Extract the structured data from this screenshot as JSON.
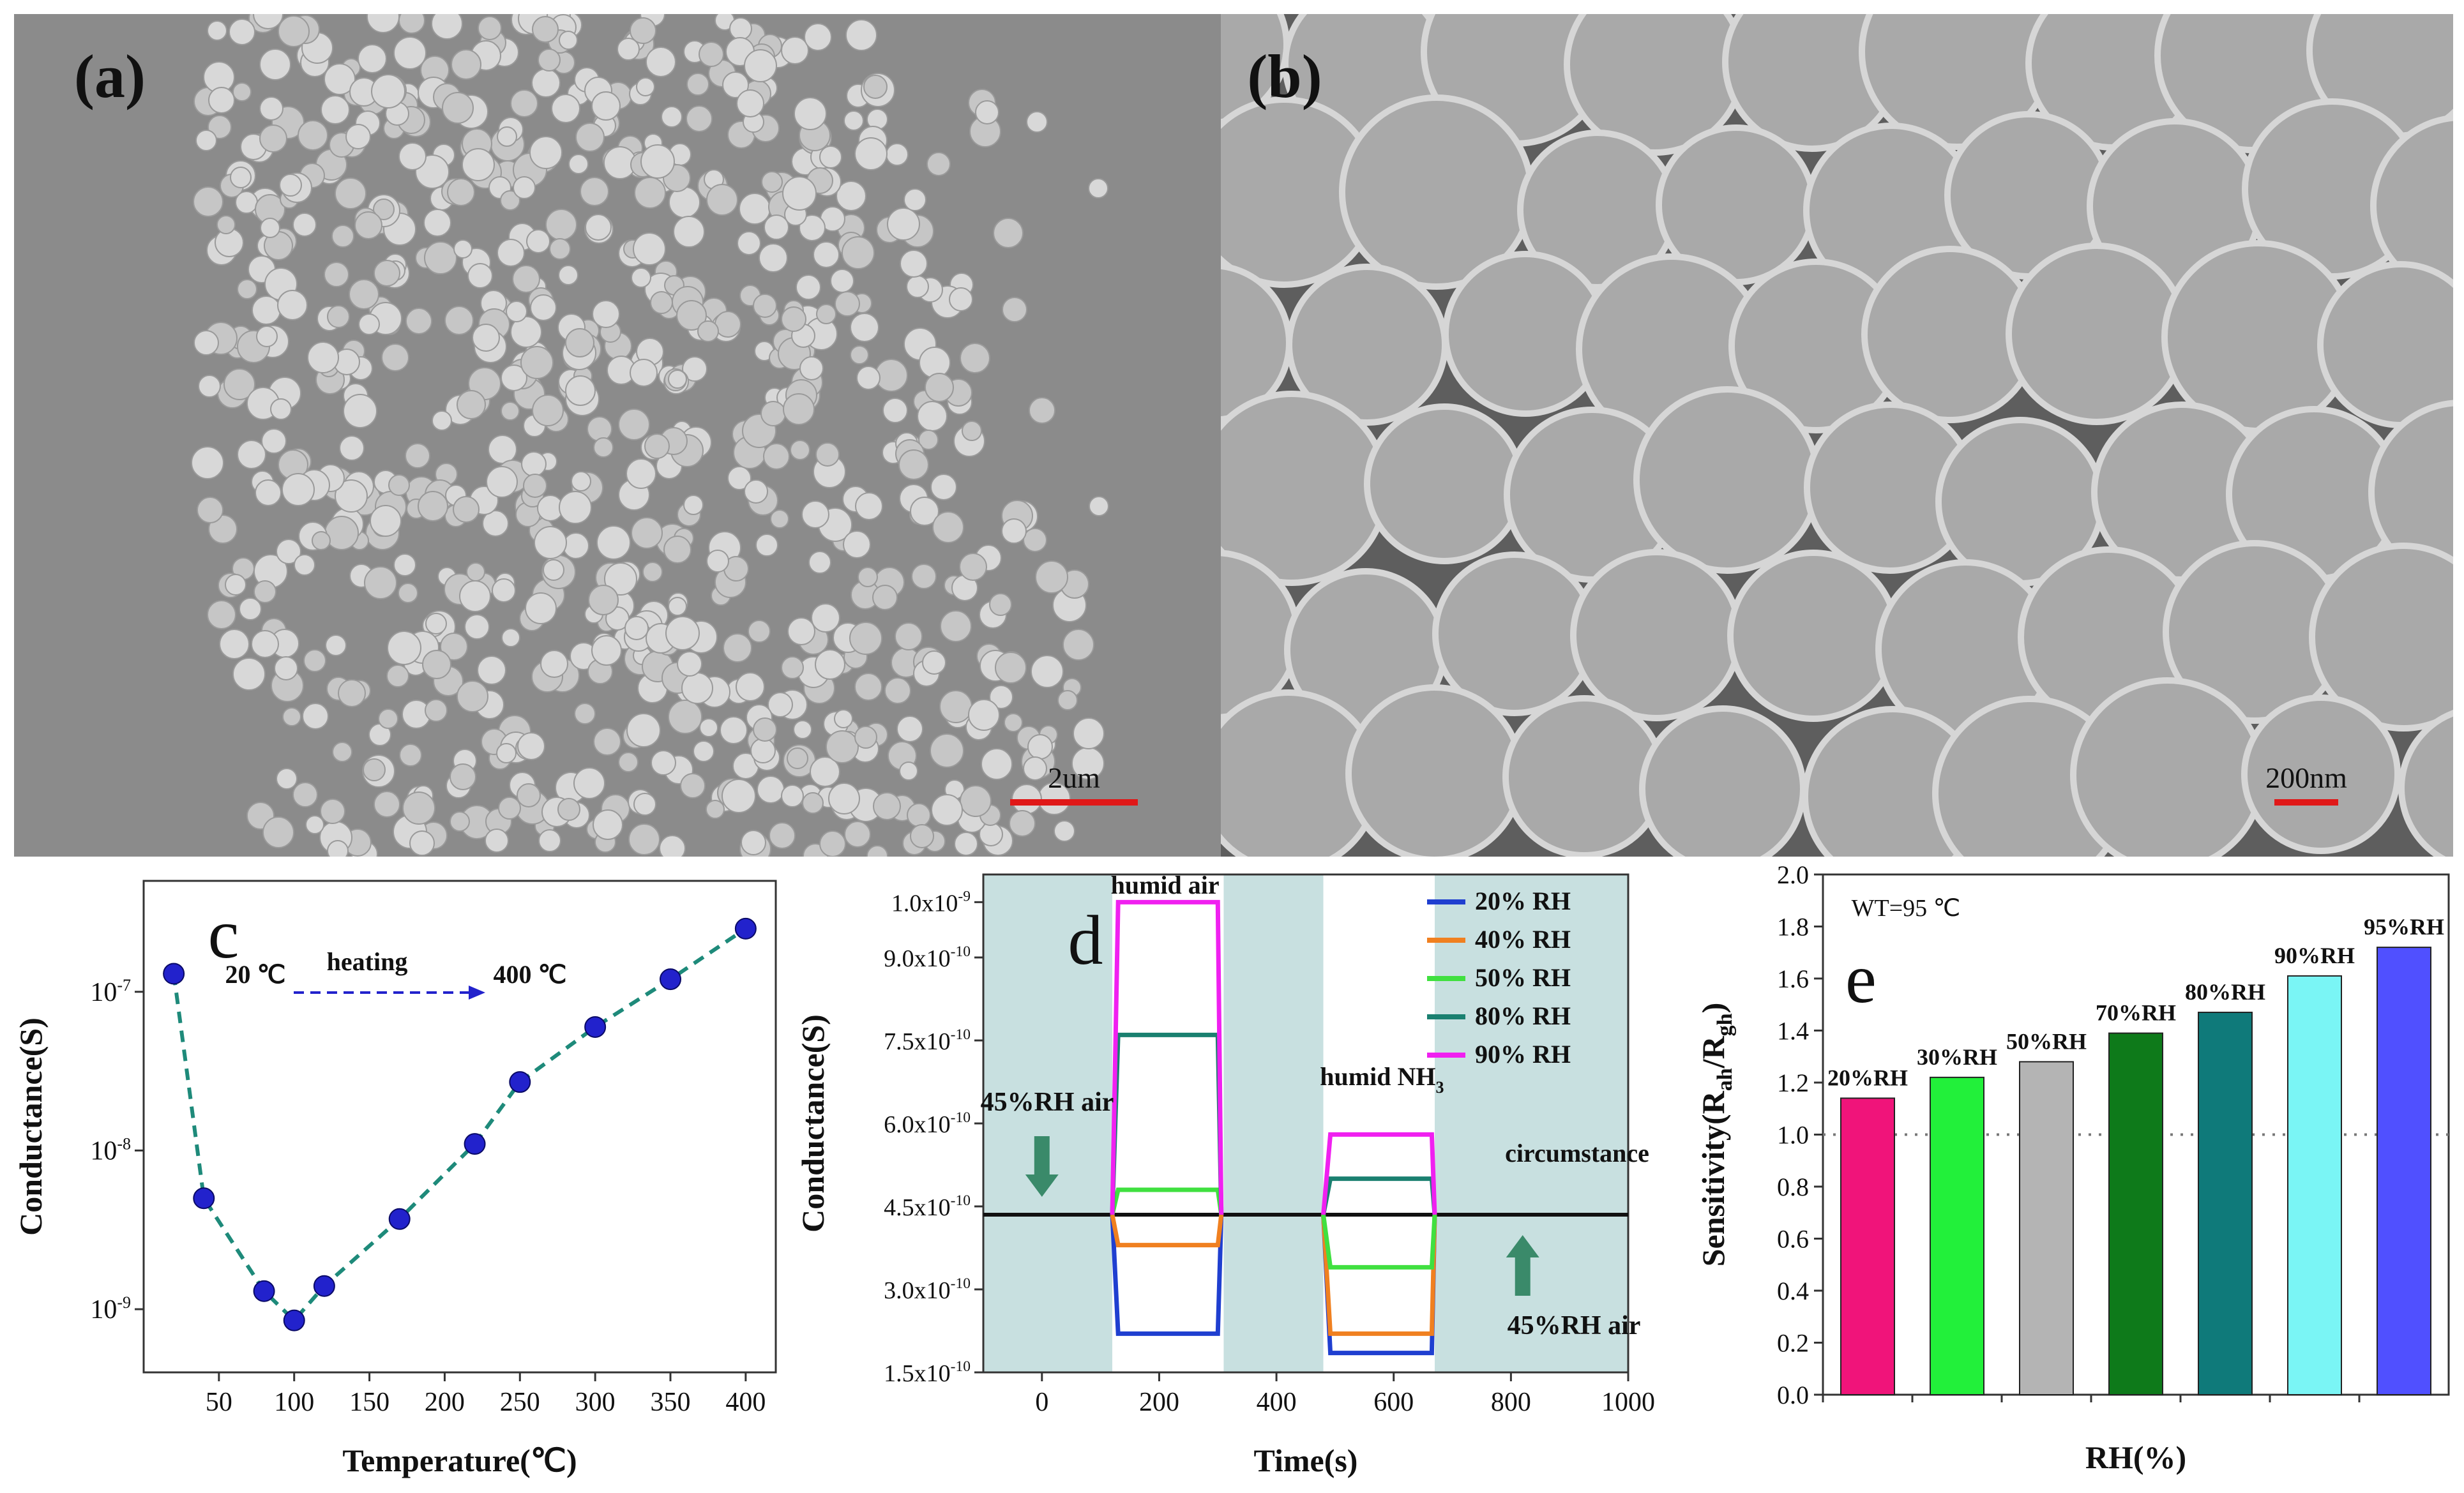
{
  "panels": {
    "a": {
      "label": "(a)",
      "scale_bar": "2um"
    },
    "b": {
      "label": "(b)",
      "scale_bar": "200nm"
    }
  },
  "colors": {
    "sem_background_a": "#8b8b8b",
    "sem_background_b": "#5e5e5e",
    "scale_bar": "#e01818",
    "panel_c_line": "#1e8a7a",
    "panel_c_marker": "#2222cc",
    "panel_d_shade": "#c8e0e0",
    "arrow_green": "#3a8a6a"
  },
  "chart_data": [
    {
      "panel": "c",
      "type": "scatter",
      "panel_label": "c",
      "xlabel": "Temperature(℃)",
      "ylabel": "Conductance(S)",
      "yscale": "log",
      "xlim": [
        0,
        420
      ],
      "ylim": [
        4e-10,
        5e-07
      ],
      "xticks": [
        "50",
        "100",
        "150",
        "200",
        "250",
        "300",
        "350",
        "400"
      ],
      "yticks": [
        "10-9",
        "10-8",
        "10-7"
      ],
      "annotations": {
        "start": "20 ℃",
        "middle": "heating",
        "end": "400 ℃"
      },
      "x": [
        20,
        40,
        80,
        100,
        120,
        170,
        220,
        250,
        300,
        350,
        400
      ],
      "y": [
        1.3e-07,
        5e-09,
        1.3e-09,
        8.5e-10,
        1.4e-09,
        3.7e-09,
        1.1e-08,
        2.7e-08,
        6e-08,
        1.2e-07,
        2.5e-07
      ]
    },
    {
      "panel": "d",
      "type": "line",
      "panel_label": "d",
      "xlabel": "Time(s)",
      "ylabel": "Conductance(S)",
      "xlim": [
        -100,
        1000
      ],
      "ylim": [
        1.5e-10,
        1.05e-09
      ],
      "xticks": [
        "0",
        "200",
        "400",
        "600",
        "800",
        "1000"
      ],
      "yticks": [
        "1.5x10-10",
        "3.0x10-10",
        "4.5x10-10",
        "6.0x10-10",
        "7.5x10-10",
        "9.0x10-10",
        "1.0x10-9"
      ],
      "annotations": {
        "humid_air": "humid air",
        "humid_nh3": "humid NH3",
        "left_air": "45%RH air",
        "right_air": "45%RH air",
        "circumstance": "circumstance"
      },
      "baseline": 4.35e-10,
      "series": [
        {
          "name": "20% RH",
          "color": "#1f3fd0",
          "level_air": 2.2e-10,
          "level_nh3": 1.85e-10
        },
        {
          "name": "40% RH",
          "color": "#f08020",
          "level_air": 3.8e-10,
          "level_nh3": 2.2e-10
        },
        {
          "name": "50% RH",
          "color": "#40e040",
          "level_air": 4.8e-10,
          "level_nh3": 3.4e-10
        },
        {
          "name": "80% RH",
          "color": "#1a8070",
          "level_air": 7.6e-10,
          "level_nh3": 5e-10
        },
        {
          "name": "90% RH",
          "color": "#f020f0",
          "level_air": 1e-09,
          "level_nh3": 5.8e-10
        }
      ]
    },
    {
      "panel": "e",
      "type": "bar",
      "panel_label": "e",
      "annotation": "WT=95 ℃",
      "xlabel": "RH(%)",
      "ylabel": "Sensitivity(Rah/Rgh)",
      "ylim": [
        0,
        2.0
      ],
      "yticks": [
        "0.0",
        "0.2",
        "0.4",
        "0.6",
        "0.8",
        "1.0",
        "1.2",
        "1.4",
        "1.6",
        "1.8",
        "2.0"
      ],
      "reference_line": 1.0,
      "categories": [
        "20%RH",
        "30%RH",
        "50%RH",
        "70%RH",
        "80%RH",
        "90%RH",
        "95%RH"
      ],
      "values": [
        1.14,
        1.22,
        1.28,
        1.39,
        1.47,
        1.61,
        1.72
      ],
      "bar_colors": [
        "#f0147a",
        "#22f03a",
        "#b4b4b4",
        "#0e7a1a",
        "#0f7a7a",
        "#7af5f5",
        "#5050ff"
      ]
    }
  ]
}
